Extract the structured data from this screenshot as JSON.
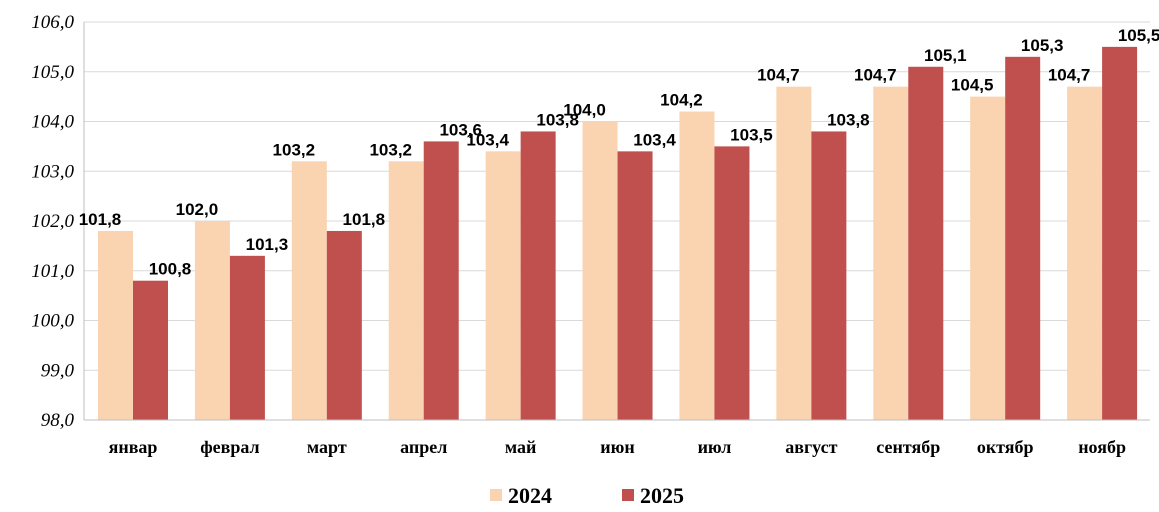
{
  "chart_data": {
    "type": "bar",
    "categories": [
      "январ",
      "феврал",
      "март",
      "апрел",
      "май",
      "июн",
      "июл",
      "август",
      "сентябр",
      "октябр",
      "ноябр"
    ],
    "series": [
      {
        "name": "2024",
        "color": "#FAD3B0",
        "values": [
          101.8,
          102.0,
          103.2,
          103.2,
          103.4,
          104.0,
          104.2,
          104.7,
          104.7,
          104.5,
          104.7
        ]
      },
      {
        "name": "2025",
        "color": "#C0504D",
        "values": [
          100.8,
          101.3,
          101.8,
          103.6,
          103.8,
          103.4,
          103.5,
          103.8,
          105.1,
          105.3,
          105.5
        ]
      }
    ],
    "y_ticks": [
      "98,0",
      "99,0",
      "100,0",
      "101,0",
      "102,0",
      "103,0",
      "104,0",
      "105,0",
      "106,0"
    ],
    "ylim": [
      98,
      106
    ],
    "grid": true,
    "legend": "bottom-center",
    "decimal_separator": ","
  }
}
